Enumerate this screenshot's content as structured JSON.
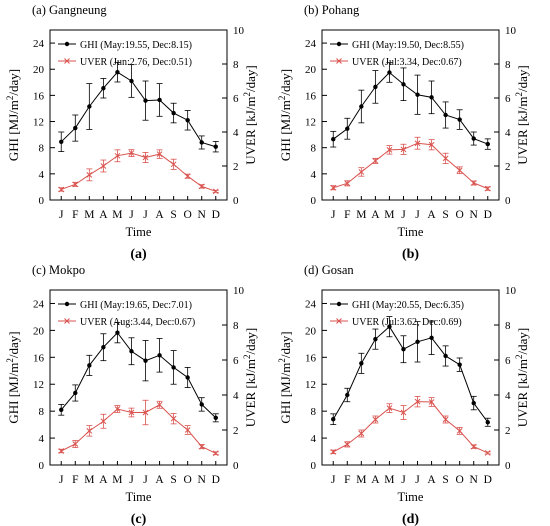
{
  "figure": {
    "panels": [
      {
        "title": "(a) Gangneung",
        "caption": "(a)",
        "legend": [
          "GHI (May:19.55, Dec:8.15)",
          "UVER (Jun:2.76, Dec:0.51)"
        ]
      },
      {
        "title": "(b) Pohang",
        "caption": "(b)",
        "legend": [
          "GHI (May:19.50, Dec:8.55)",
          "UVER (Jul:3.34, Dec:0.67)"
        ]
      },
      {
        "title": "(c) Mokpo",
        "caption": "(c)",
        "legend": [
          "GHI (May:19.65, Dec:7.01)",
          "UVER (Aug:3.44, Dec:0.67)"
        ]
      },
      {
        "title": "(d) Gosan",
        "caption": "(d)",
        "legend": [
          "GHI (May:20.55, Dec:6.35)",
          "UVER (Jul:3.62, Dec:0.69)"
        ]
      }
    ],
    "xlabel": "Time",
    "ylabel_left": "GHI [MJ/m²/day]",
    "ylabel_right": "UVER [kJ/m²/day]",
    "colors": {
      "ghi": "#000000",
      "uver": "#d9534f"
    }
  },
  "chart_data": [
    {
      "type": "line",
      "title": "(a) Gangneung",
      "xlabel": "Time",
      "ylabel": "GHI [MJ/m²/day]",
      "y2label": "UVER [kJ/m²/day]",
      "categories": [
        "J",
        "F",
        "M",
        "A",
        "M",
        "J",
        "J",
        "A",
        "S",
        "O",
        "N",
        "D"
      ],
      "ylim": [
        0,
        26
      ],
      "y2lim": [
        0,
        10
      ],
      "yticks": [
        0,
        4,
        8,
        12,
        16,
        20,
        24
      ],
      "y2ticks": [
        0,
        2,
        4,
        6,
        8,
        10
      ],
      "series": [
        {
          "name": "GHI (May:19.55, Dec:8.15)",
          "axis": "left",
          "color": "#000000",
          "values": [
            8.9,
            11.0,
            14.3,
            17.1,
            19.55,
            18.2,
            15.2,
            15.3,
            13.3,
            12.2,
            8.8,
            8.15
          ],
          "errors": [
            1.5,
            2.0,
            3.5,
            1.5,
            1.5,
            2.5,
            3.0,
            2.5,
            1.5,
            1.5,
            1.0,
            0.8
          ]
        },
        {
          "name": "UVER (Jun:2.76, Dec:0.51)",
          "axis": "right",
          "color": "#d9534f",
          "values": [
            0.62,
            0.92,
            1.48,
            2.0,
            2.6,
            2.76,
            2.5,
            2.7,
            2.1,
            1.4,
            0.8,
            0.51
          ],
          "errors": [
            0.1,
            0.12,
            0.35,
            0.35,
            0.35,
            0.2,
            0.3,
            0.25,
            0.3,
            0.12,
            0.1,
            0.06
          ]
        }
      ]
    },
    {
      "type": "line",
      "title": "(b) Pohang",
      "xlabel": "Time",
      "ylabel": "GHI [MJ/m²/day]",
      "y2label": "UVER [kJ/m²/day]",
      "categories": [
        "J",
        "F",
        "M",
        "A",
        "M",
        "J",
        "J",
        "A",
        "S",
        "O",
        "N",
        "D"
      ],
      "ylim": [
        0,
        26
      ],
      "y2lim": [
        0,
        10
      ],
      "yticks": [
        0,
        4,
        8,
        12,
        16,
        20,
        24
      ],
      "y2ticks": [
        0,
        2,
        4,
        6,
        8,
        10
      ],
      "series": [
        {
          "name": "GHI (May:19.50, Dec:8.55)",
          "axis": "left",
          "color": "#000000",
          "values": [
            9.3,
            10.9,
            14.3,
            17.3,
            19.5,
            17.7,
            16.1,
            15.7,
            13.0,
            12.3,
            9.4,
            8.55
          ],
          "errors": [
            1.2,
            1.6,
            2.5,
            2.5,
            1.5,
            2.5,
            3.0,
            2.5,
            2.0,
            1.5,
            1.0,
            0.8
          ]
        },
        {
          "name": "UVER (Jul:3.34, Dec:0.67)",
          "axis": "right",
          "color": "#d9534f",
          "values": [
            0.72,
            0.98,
            1.65,
            2.3,
            2.95,
            2.98,
            3.34,
            3.25,
            2.45,
            1.75,
            1.0,
            0.67
          ],
          "errors": [
            0.12,
            0.15,
            0.25,
            0.15,
            0.25,
            0.3,
            0.35,
            0.3,
            0.3,
            0.2,
            0.12,
            0.1
          ]
        }
      ]
    },
    {
      "type": "line",
      "title": "(c) Mokpo",
      "xlabel": "Time",
      "ylabel": "GHI [MJ/m²/day]",
      "y2label": "UVER [kJ/m²/day]",
      "categories": [
        "J",
        "F",
        "M",
        "A",
        "M",
        "J",
        "J",
        "A",
        "S",
        "O",
        "N",
        "D"
      ],
      "ylim": [
        0,
        26
      ],
      "y2lim": [
        0,
        10
      ],
      "yticks": [
        0,
        4,
        8,
        12,
        16,
        20,
        24
      ],
      "y2ticks": [
        0,
        2,
        4,
        6,
        8,
        10
      ],
      "series": [
        {
          "name": "GHI (May:19.65, Dec:7.01)",
          "axis": "left",
          "color": "#000000",
          "values": [
            8.2,
            10.7,
            14.8,
            17.5,
            19.65,
            16.9,
            15.5,
            16.3,
            14.5,
            13.0,
            9.0,
            7.01
          ],
          "errors": [
            0.8,
            1.2,
            1.5,
            2.0,
            1.5,
            2.0,
            3.0,
            2.5,
            2.5,
            1.5,
            1.0,
            0.6
          ]
        },
        {
          "name": "UVER (Aug:3.44, Dec:0.67)",
          "axis": "right",
          "color": "#d9534f",
          "values": [
            0.8,
            1.2,
            1.95,
            2.5,
            3.2,
            3.0,
            3.0,
            3.44,
            2.65,
            2.0,
            1.05,
            0.67
          ],
          "errors": [
            0.1,
            0.2,
            0.3,
            0.4,
            0.2,
            0.25,
            0.7,
            0.2,
            0.3,
            0.25,
            0.12,
            0.08
          ]
        }
      ]
    },
    {
      "type": "line",
      "title": "(d) Gosan",
      "xlabel": "Time",
      "ylabel": "GHI [MJ/m²/day]",
      "y2label": "UVER [kJ/m²/day]",
      "categories": [
        "J",
        "F",
        "M",
        "A",
        "M",
        "J",
        "J",
        "A",
        "S",
        "O",
        "N",
        "D"
      ],
      "ylim": [
        0,
        26
      ],
      "y2lim": [
        0,
        10
      ],
      "yticks": [
        0,
        4,
        8,
        12,
        16,
        20,
        24
      ],
      "y2ticks": [
        0,
        2,
        4,
        6,
        8,
        10
      ],
      "series": [
        {
          "name": "GHI (May:20.55, Dec:6.35)",
          "axis": "left",
          "color": "#000000",
          "values": [
            6.8,
            10.4,
            15.1,
            18.7,
            20.55,
            17.2,
            18.3,
            18.9,
            16.2,
            14.9,
            9.2,
            6.35
          ],
          "errors": [
            0.8,
            1.0,
            1.5,
            1.5,
            1.5,
            2.0,
            3.0,
            2.5,
            1.5,
            1.0,
            1.0,
            0.6
          ]
        },
        {
          "name": "UVER (Jul:3.62, Dec:0.69)",
          "axis": "right",
          "color": "#d9534f",
          "values": [
            0.75,
            1.18,
            1.8,
            2.6,
            3.25,
            3.0,
            3.62,
            3.6,
            2.6,
            1.95,
            1.05,
            0.69
          ],
          "errors": [
            0.1,
            0.15,
            0.2,
            0.2,
            0.25,
            0.4,
            0.3,
            0.25,
            0.2,
            0.2,
            0.1,
            0.06
          ]
        }
      ]
    }
  ]
}
